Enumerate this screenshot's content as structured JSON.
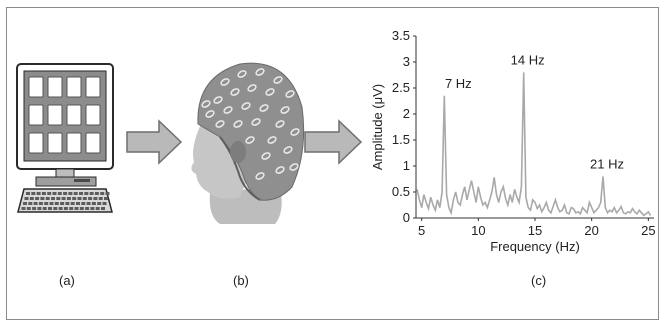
{
  "panels": {
    "a": {
      "caption": "(a)"
    },
    "b": {
      "caption": "(b)"
    },
    "c": {
      "caption": "(c)"
    }
  },
  "colors": {
    "arrow_fill": "#b9b9b9",
    "arrow_stroke": "#6f6f6f",
    "monitor_screen": "#8c8c8c",
    "cap_base": "#9a9a9a",
    "line": "#a9a9a9"
  },
  "icons": {
    "computer": "computer-icon",
    "head": "eeg-cap-head-icon",
    "arrow": "right-arrow-icon"
  },
  "chart_data": {
    "type": "line",
    "title": "",
    "xlabel": "Frequency (Hz)",
    "ylabel": "Amplitude (μV)",
    "xlim": [
      4.5,
      25.5
    ],
    "ylim": [
      0,
      3.5
    ],
    "xticks": [
      5,
      10,
      15,
      20,
      25
    ],
    "yticks": [
      0,
      0.5,
      1,
      1.5,
      2,
      2.5,
      3,
      3.5
    ],
    "ytick_labels": [
      "0",
      "0.5",
      "1",
      "1.5",
      "2",
      "2.5",
      "3",
      "3.5"
    ],
    "grid": false,
    "series": [
      {
        "x": [
          4.6,
          4.8,
          5.0,
          5.2,
          5.4,
          5.6,
          5.8,
          6.0,
          6.2,
          6.4,
          6.6,
          6.8,
          7.0,
          7.2,
          7.4,
          7.6,
          7.8,
          8.0,
          8.2,
          8.4,
          8.6,
          8.8,
          9.0,
          9.2,
          9.4,
          9.6,
          9.8,
          10.0,
          10.2,
          10.4,
          10.6,
          10.8,
          11.0,
          11.2,
          11.4,
          11.6,
          11.8,
          12.0,
          12.2,
          12.4,
          12.6,
          12.8,
          13.0,
          13.2,
          13.4,
          13.6,
          13.8,
          14.0,
          14.2,
          14.4,
          14.6,
          14.8,
          15.0,
          15.2,
          15.4,
          15.6,
          15.8,
          16.0,
          16.2,
          16.4,
          16.6,
          16.8,
          17.0,
          17.2,
          17.4,
          17.6,
          17.8,
          18.0,
          18.2,
          18.4,
          18.6,
          18.8,
          19.0,
          19.2,
          19.4,
          19.6,
          19.8,
          20.0,
          20.2,
          20.4,
          20.6,
          20.8,
          21.0,
          21.2,
          21.4,
          21.6,
          21.8,
          22.0,
          22.2,
          22.4,
          22.6,
          22.8,
          23.0,
          23.2,
          23.4,
          23.6,
          23.8,
          24.0,
          24.2,
          24.4,
          24.6,
          24.8,
          25.0,
          25.2
        ],
        "y": [
          0.55,
          0.35,
          0.2,
          0.45,
          0.3,
          0.18,
          0.4,
          0.25,
          0.15,
          0.35,
          0.2,
          0.5,
          2.35,
          0.45,
          0.2,
          0.1,
          0.35,
          0.5,
          0.3,
          0.25,
          0.45,
          0.6,
          0.35,
          0.55,
          0.72,
          0.5,
          0.3,
          0.6,
          0.4,
          0.25,
          0.3,
          0.2,
          0.35,
          0.5,
          0.78,
          0.45,
          0.3,
          0.5,
          0.6,
          0.38,
          0.25,
          0.45,
          0.3,
          0.55,
          0.4,
          0.3,
          0.6,
          2.8,
          0.4,
          0.2,
          0.15,
          0.35,
          0.3,
          0.18,
          0.25,
          0.12,
          0.2,
          0.3,
          0.15,
          0.1,
          0.22,
          0.35,
          0.2,
          0.12,
          0.15,
          0.25,
          0.1,
          0.08,
          0.2,
          0.18,
          0.1,
          0.12,
          0.08,
          0.2,
          0.15,
          0.1,
          0.3,
          0.2,
          0.1,
          0.15,
          0.2,
          0.3,
          0.8,
          0.2,
          0.1,
          0.15,
          0.12,
          0.2,
          0.1,
          0.15,
          0.22,
          0.1,
          0.08,
          0.12,
          0.1,
          0.18,
          0.12,
          0.08,
          0.15,
          0.1,
          0.05,
          0.08,
          0.12,
          0.05
        ]
      }
    ],
    "annotations": [
      {
        "text": "7 Hz",
        "x": 7,
        "y": 2.35
      },
      {
        "text": "14 Hz",
        "x": 14,
        "y": 2.8
      },
      {
        "text": "21 Hz",
        "x": 21,
        "y": 0.8
      }
    ]
  }
}
